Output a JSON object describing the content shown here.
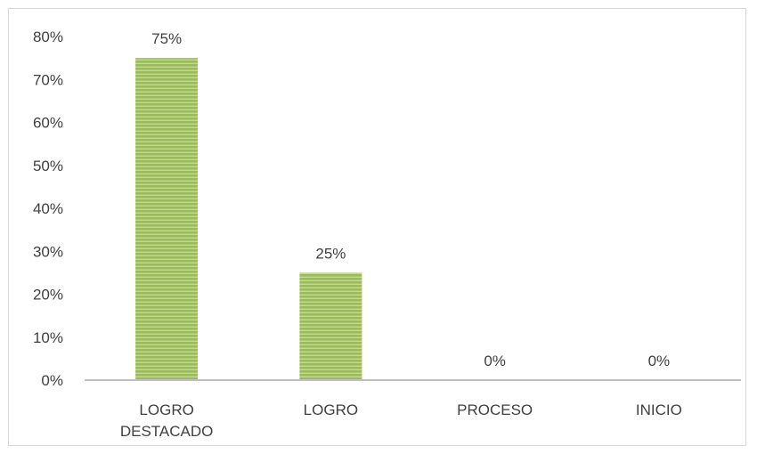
{
  "chart_data": {
    "type": "bar",
    "categories": [
      [
        "LOGRO",
        "DESTACADO"
      ],
      [
        "LOGRO"
      ],
      [
        "PROCESO"
      ],
      [
        "INICIO"
      ]
    ],
    "values": [
      75,
      25,
      0,
      0
    ],
    "data_labels": [
      "75%",
      "25%",
      "0%",
      "0%"
    ],
    "y_ticks": [
      "0%",
      "10%",
      "20%",
      "30%",
      "40%",
      "50%",
      "60%",
      "70%",
      "80%"
    ],
    "ylim": [
      0,
      80
    ],
    "grid": false,
    "legend": "none",
    "bar_color": "#9bbb59",
    "stripe_color": "#c3d69b",
    "axis_color": "#bfbfbf"
  }
}
